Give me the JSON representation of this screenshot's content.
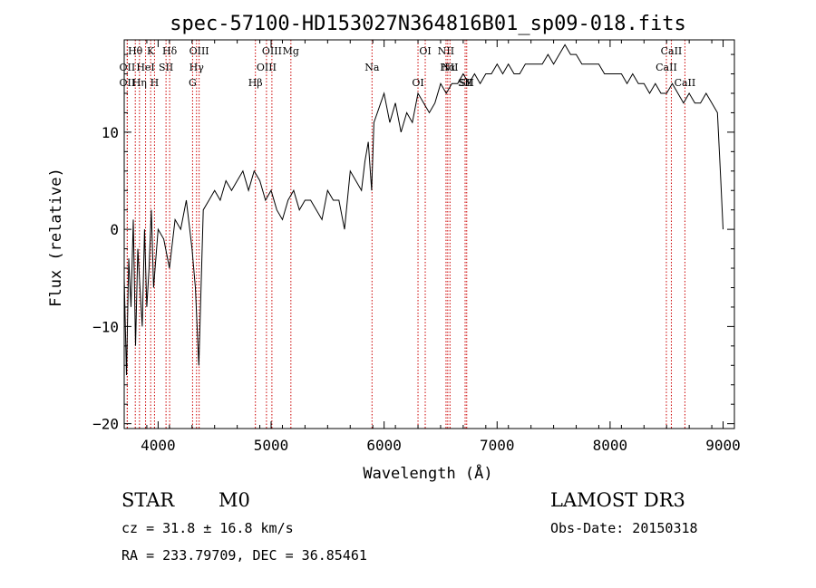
{
  "chart_data": {
    "type": "line",
    "title": "spec-57100-HD153027N364816B01_sp09-018.fits",
    "xlabel": "Wavelength (Å)",
    "ylabel": "Flux (relative)",
    "xlim": [
      3700,
      9100
    ],
    "ylim": [
      -20.5,
      19.5
    ],
    "x_ticks": [
      4000,
      5000,
      6000,
      7000,
      8000,
      9000
    ],
    "y_ticks": [
      -20,
      -10,
      0,
      10
    ],
    "series": [
      {
        "name": "flux",
        "x": [
          3700,
          3720,
          3740,
          3760,
          3780,
          3800,
          3820,
          3840,
          3860,
          3880,
          3900,
          3920,
          3940,
          3960,
          3980,
          4000,
          4050,
          4100,
          4150,
          4200,
          4250,
          4300,
          4330,
          4360,
          4400,
          4450,
          4500,
          4550,
          4600,
          4650,
          4700,
          4750,
          4800,
          4850,
          4900,
          4950,
          5000,
          5050,
          5100,
          5150,
          5200,
          5250,
          5300,
          5350,
          5400,
          5450,
          5500,
          5550,
          5600,
          5650,
          5700,
          5750,
          5800,
          5830,
          5860,
          5890,
          5910,
          5940,
          5970,
          6000,
          6050,
          6100,
          6150,
          6200,
          6250,
          6300,
          6350,
          6400,
          6450,
          6500,
          6550,
          6600,
          6650,
          6700,
          6750,
          6800,
          6850,
          6900,
          6950,
          7000,
          7050,
          7100,
          7150,
          7200,
          7250,
          7300,
          7350,
          7400,
          7450,
          7500,
          7550,
          7600,
          7650,
          7700,
          7750,
          7800,
          7850,
          7900,
          7950,
          8000,
          8050,
          8100,
          8150,
          8200,
          8250,
          8300,
          8350,
          8400,
          8450,
          8500,
          8550,
          8600,
          8650,
          8700,
          8750,
          8800,
          8850,
          8900,
          8950,
          8980,
          9000
        ],
        "values": [
          -5,
          -15,
          -3,
          -8,
          1,
          -12,
          -2,
          -6,
          -10,
          0,
          -8,
          -4,
          2,
          -6,
          -3,
          0,
          -1,
          -4,
          1,
          0,
          3,
          -2,
          -6,
          -14,
          2,
          3,
          4,
          3,
          5,
          4,
          5,
          6,
          4,
          6,
          5,
          3,
          4,
          2,
          1,
          3,
          4,
          2,
          3,
          3,
          2,
          1,
          4,
          3,
          3,
          0,
          6,
          5,
          4,
          7,
          9,
          4,
          11,
          12,
          13,
          14,
          11,
          13,
          10,
          12,
          11,
          14,
          13,
          12,
          13,
          15,
          14,
          15,
          15,
          16,
          15,
          16,
          15,
          16,
          16,
          17,
          16,
          17,
          16,
          16,
          17,
          17,
          17,
          17,
          18,
          17,
          18,
          19,
          18,
          18,
          17,
          17,
          17,
          17,
          16,
          16,
          16,
          16,
          15,
          16,
          15,
          15,
          14,
          15,
          14,
          14,
          15,
          14,
          13,
          14,
          13,
          13,
          14,
          13,
          12,
          5,
          0
        ]
      }
    ],
    "line_markers": [
      {
        "label": "Hθ",
        "wave": 3798
      },
      {
        "label": "OII",
        "wave": 3727
      },
      {
        "label": "OII",
        "wave": 3727
      },
      {
        "label": "K",
        "wave": 3934
      },
      {
        "label": "HeI",
        "wave": 3889
      },
      {
        "label": "Hη",
        "wave": 3835
      },
      {
        "label": "Hδ",
        "wave": 4102
      },
      {
        "label": "SII",
        "wave": 4070
      },
      {
        "label": "H",
        "wave": 3968
      },
      {
        "label": "OIII",
        "wave": 4363
      },
      {
        "label": "Hγ",
        "wave": 4340
      },
      {
        "label": "G",
        "wave": 4305
      },
      {
        "label": "OIII",
        "wave": 5007
      },
      {
        "label": "OIII",
        "wave": 4959
      },
      {
        "label": "Hβ",
        "wave": 4861
      },
      {
        "label": "Mg",
        "wave": 5175
      },
      {
        "label": "Na",
        "wave": 5893
      },
      {
        "label": "OI",
        "wave": 6300
      },
      {
        "label": "OI",
        "wave": 6364
      },
      {
        "label": "Hα",
        "wave": 6563
      },
      {
        "label": "SII",
        "wave": 6717
      },
      {
        "label": "NII",
        "wave": 6548
      },
      {
        "label": "NII",
        "wave": 6583
      },
      {
        "label": "SII",
        "wave": 6731
      },
      {
        "label": "CaII",
        "wave": 8542
      },
      {
        "label": "CaII",
        "wave": 8498
      },
      {
        "label": "CaII",
        "wave": 8662
      }
    ]
  },
  "info": {
    "class": "STAR",
    "subclass": "M0",
    "survey": "LAMOST DR3",
    "cz": "cz = 31.8 ± 16.8 km/s",
    "obs_date": "Obs-Date: 20150318",
    "coords": "RA = 233.79709, DEC =  36.85461"
  },
  "colors": {
    "line": "#000000",
    "marker": "#cc0000"
  }
}
